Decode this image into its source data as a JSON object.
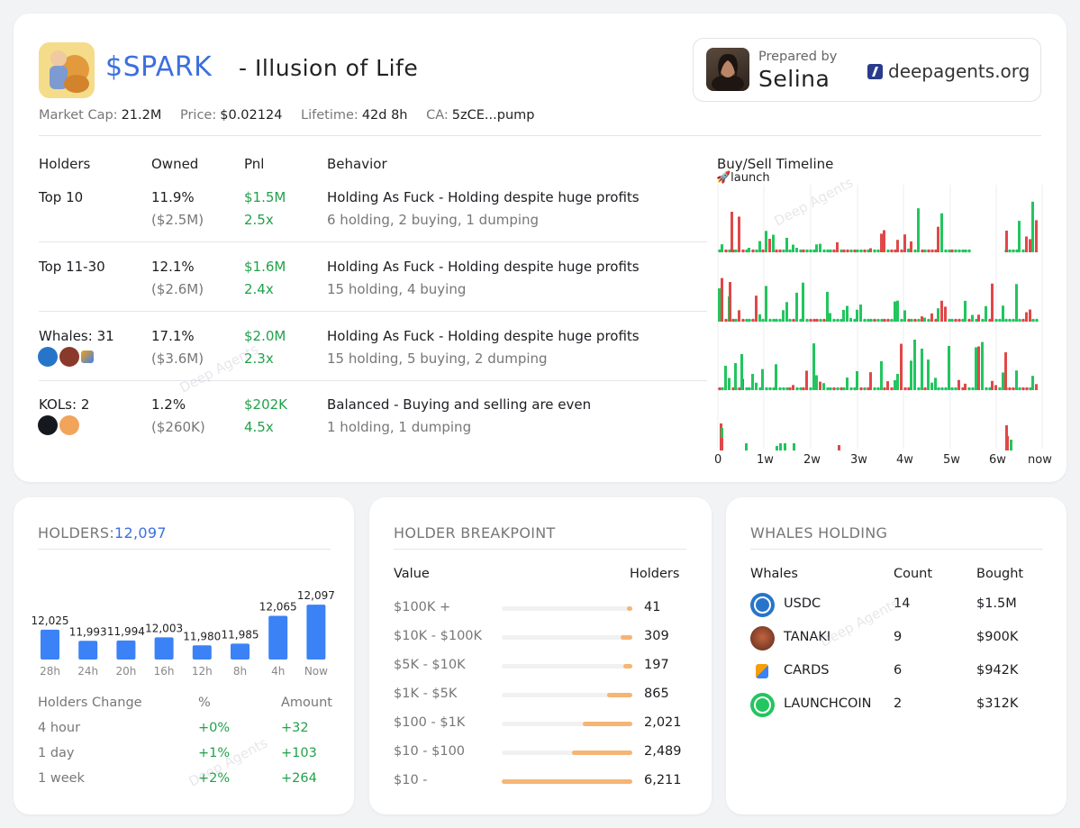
{
  "token": {
    "ticker": "$SPARK",
    "subtitle": "- Illusion of Life"
  },
  "meta": {
    "market_cap_label": "Market Cap:",
    "market_cap": "21.2M",
    "price_label": "Price:",
    "price": "$0.02124",
    "lifetime_label": "Lifetime:",
    "lifetime": "42d 8h",
    "ca_label": "CA:",
    "ca": "5zCE...pump"
  },
  "prepared": {
    "label": "Prepared by",
    "name": "Selina",
    "site": "deepagents.org"
  },
  "table": {
    "headers": {
      "holders": "Holders",
      "owned": "Owned",
      "pnl": "Pnl",
      "behavior": "Behavior",
      "timeline": "Buy/Sell Timeline"
    },
    "launch_label": "🚀launch",
    "rows": [
      {
        "name": "Top 10",
        "owned": "11.9%",
        "owned_usd": "($2.5M)",
        "pnl": "$1.5M",
        "mult": "2.5x",
        "behavior": "Holding As Fuck - Holding despite huge profits",
        "detail": "6 holding, 2 buying, 1 dumping"
      },
      {
        "name": "Top 11-30",
        "owned": "12.1%",
        "owned_usd": "($2.6M)",
        "pnl": "$1.6M",
        "mult": "2.4x",
        "behavior": "Holding As Fuck - Holding despite huge profits",
        "detail": "15 holding, 4 buying"
      },
      {
        "name": "Whales: 31",
        "owned": "17.1%",
        "owned_usd": "($3.6M)",
        "pnl": "$2.0M",
        "mult": "2.3x",
        "behavior": "Holding As Fuck - Holding despite huge profits",
        "detail": "15 holding, 5 buying, 2 dumping"
      },
      {
        "name": "KOLs: 2",
        "owned": "1.2%",
        "owned_usd": "($260K)",
        "pnl": "$202K",
        "mult": "4.5x",
        "behavior": "Balanced - Buying and selling are even",
        "detail": "1 holding, 1 dumping"
      }
    ],
    "x_ticks": [
      "0",
      "1w",
      "2w",
      "3w",
      "4w",
      "5w",
      "6w",
      "now"
    ]
  },
  "holders": {
    "title": "HOLDERS:",
    "count": "12,097",
    "change_headers": {
      "label": "Holders Change",
      "pct": "%",
      "amount": "Amount"
    },
    "changes": [
      {
        "label": "4 hour",
        "pct": "+0%",
        "amount": "+32"
      },
      {
        "label": "1 day",
        "pct": "+1%",
        "amount": "+103"
      },
      {
        "label": "1 week",
        "pct": "+2%",
        "amount": "+264"
      }
    ]
  },
  "breakpoint": {
    "title": "HOLDER BREAKPOINT",
    "headers": {
      "value": "Value",
      "holders": "Holders"
    },
    "rows": [
      {
        "range": "$100K +",
        "count": "41",
        "fraction": 0.03
      },
      {
        "range": "$10K - $100K",
        "count": "309",
        "fraction": 0.09
      },
      {
        "range": "$5K - $10K",
        "count": "197",
        "fraction": 0.07
      },
      {
        "range": "$1K - $5K",
        "count": "865",
        "fraction": 0.19
      },
      {
        "range": "$100 - $1K",
        "count": "2,021",
        "fraction": 0.38
      },
      {
        "range": "$10 - $100",
        "count": "2,489",
        "fraction": 0.46
      },
      {
        "range": "$10 -",
        "count": "6,211",
        "fraction": 1.0
      }
    ]
  },
  "whales": {
    "title": "WHALES HOLDING",
    "headers": {
      "whales": "Whales",
      "count": "Count",
      "bought": "Bought"
    },
    "rows": [
      {
        "name": "USDC",
        "count": "14",
        "bought": "$1.5M",
        "icon": "usdc-icon"
      },
      {
        "name": "TANAKI",
        "count": "9",
        "bought": "$900K",
        "icon": "tanaki-icon"
      },
      {
        "name": "CARDS",
        "count": "6",
        "bought": "$942K",
        "icon": "cards-icon"
      },
      {
        "name": "LAUNCHCOIN",
        "count": "2",
        "bought": "$312K",
        "icon": "launchcoin-icon"
      }
    ]
  },
  "watermark": "Deep Agents",
  "chart_data": {
    "type": "bar",
    "categories": [
      "28h",
      "24h",
      "20h",
      "16h",
      "12h",
      "8h",
      "4h",
      "Now"
    ],
    "values": [
      12025,
      11993,
      11994,
      12003,
      11980,
      11985,
      12065,
      12097
    ],
    "value_labels": [
      "12,025",
      "11,993",
      "11,994",
      "12,003",
      "11,980",
      "11,985",
      "12,065",
      "12,097"
    ],
    "title": "",
    "xlabel": "",
    "ylabel": "",
    "ylim": [
      11960,
      12100
    ],
    "color": "#3b82f6"
  },
  "colors": {
    "accent": "#3b6fe0",
    "buy": "#22c55e",
    "sell": "#e04848",
    "bar": "#3b82f6",
    "breakpoint": "#f5b574"
  }
}
